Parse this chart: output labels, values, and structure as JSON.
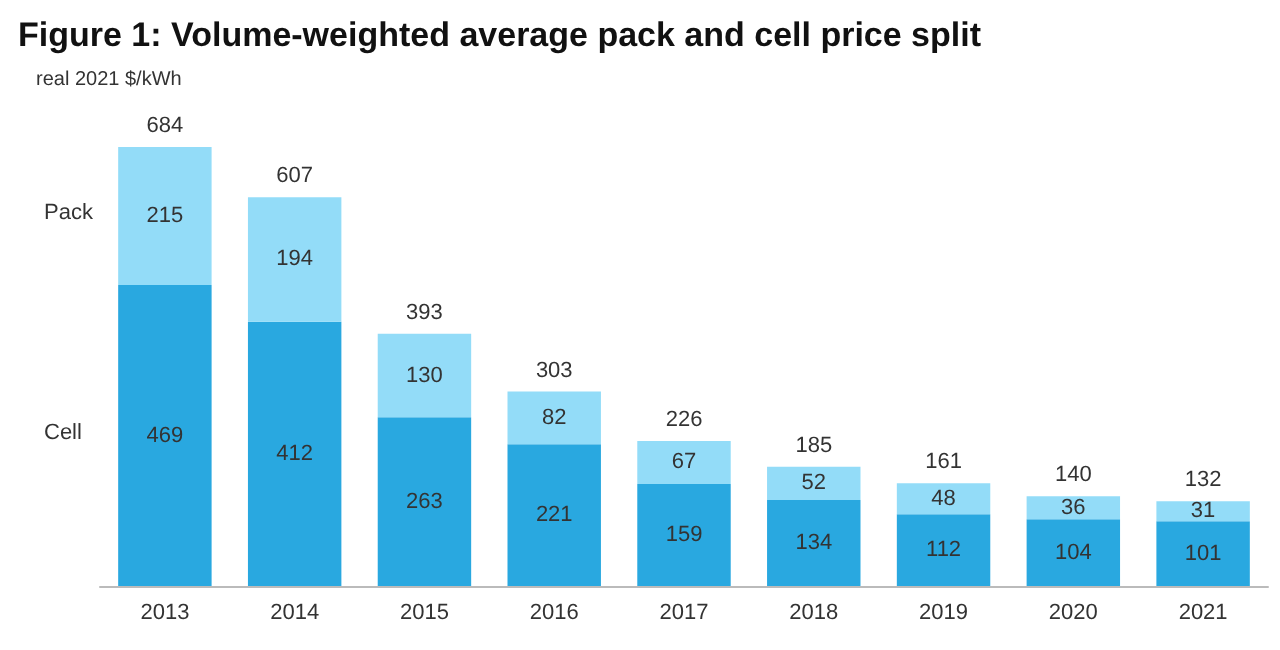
{
  "chart_data": {
    "type": "bar",
    "title": "Figure 1: Volume-weighted average pack and cell price split",
    "ylabel": "real 2021 $/kWh",
    "categories": [
      "2013",
      "2014",
      "2015",
      "2016",
      "2017",
      "2018",
      "2019",
      "2020",
      "2021"
    ],
    "stacked": true,
    "data_labels": true,
    "legend": false,
    "series": [
      {
        "name": "Cell",
        "color": "#29a8e0",
        "values": [
          469,
          412,
          263,
          221,
          159,
          134,
          112,
          104,
          101
        ]
      },
      {
        "name": "Pack",
        "color": "#93dcf8",
        "values": [
          215,
          194,
          130,
          82,
          67,
          52,
          48,
          36,
          31
        ]
      }
    ],
    "totals": [
      "684",
      "607",
      "393",
      "303",
      "226",
      "185",
      "161",
      "140",
      "132"
    ]
  }
}
